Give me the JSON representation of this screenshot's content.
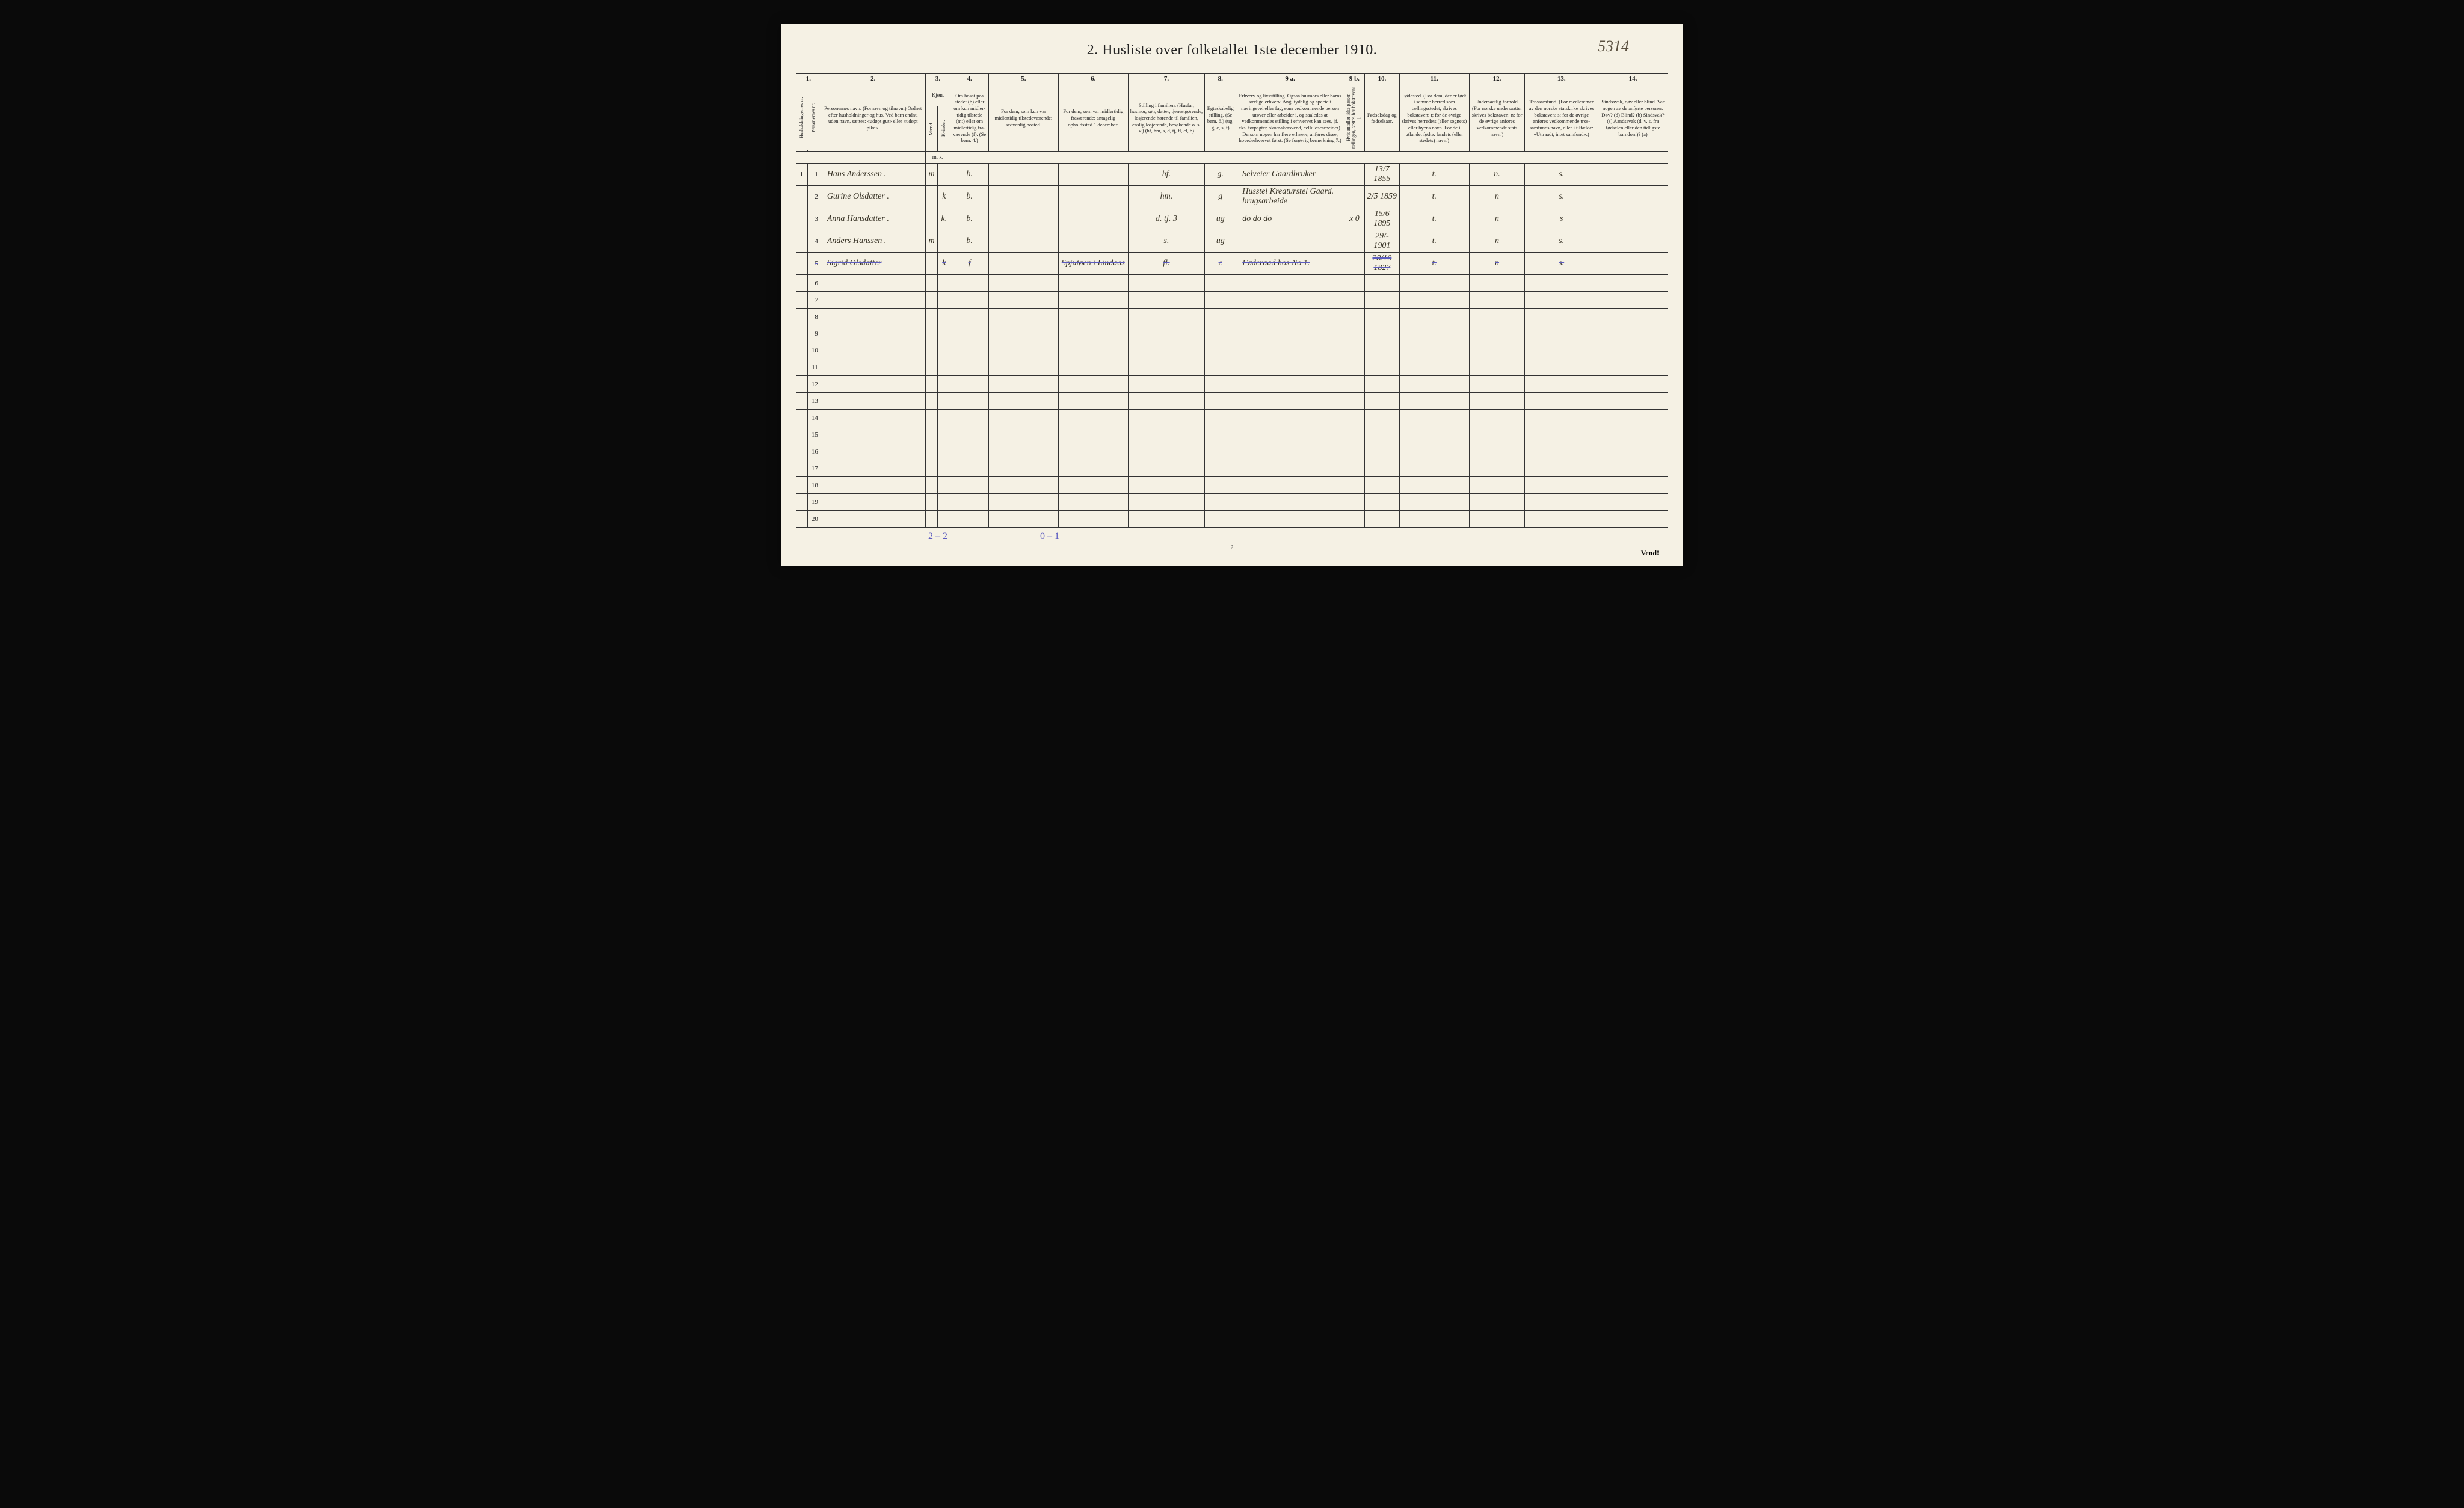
{
  "title": "2.  Husliste over folketallet 1ste december 1910.",
  "topRightNote": "5314",
  "colNums": [
    "1.",
    "",
    "2.",
    "3.",
    "4.",
    "5.",
    "6.",
    "7.",
    "8.",
    "9 a.",
    "9 b.",
    "10.",
    "11.",
    "12.",
    "13.",
    "14."
  ],
  "headers": {
    "husholdning": "Husholdningernes nr.",
    "personnr": "Personernes nr.",
    "navn": "Personernes navn.\n(Fornavn og tilnavn.)\nOrdnet efter husholdninger og hus.\nVed barn endnu uden navn, sættes: «udøpt gut» eller «udøpt pike».",
    "kjon": "Kjøn.",
    "mand": "Mænd.",
    "kvinder": "Kvinder.",
    "bosat": "Om bosat paa stedet (b) eller om kun midler­tidig tilstede (mt) eller om midler­tidig fra­værende (f).\n(Se bem. 4.)",
    "tilstede": "For dem, som kun var midlertidig tilstede­værende:\nsedvanlig bosted.",
    "fravar": "For dem, som var midlertidig fraværende:\nantagelig opholdssted 1 december.",
    "stilling": "Stilling i familien.\n(Husfar, husmor, søn, datter, tjenestgørende, lo­sjerende hørende til familien, enslig losjerende, besøkende o. s. v.)\n(hf, hm, s, d, tj, fl, el, b)",
    "egte": "Egteska­belig stilling.\n(Se bem. 6.)\n(ug, g, e, s, f)",
    "erhverv": "Erhverv og livsstilling.\nOgsaa husmors eller barns særlige erhverv.\nAngi tydelig og specielt næringsvei eller fag, som vedkommende person utøver eller arbeider i, og saaledes at vedkommendes stilling i erhvervet kan sees, (f. eks. forpagter, skomakersvend, cellulose­arbeider). Dersom nogen har flere erhverv, anføres disse, hovederhvervet først.\n(Se forøvrig bemerkning 7.)",
    "hvis": "Hvis antallet ikke passer tællingen, sættes her bokstaven: i.",
    "fodselsdag": "Fødsels­dag og fødsels­aar.",
    "fodested": "Fødested.\n(For dem, der er født i samme herred som tællingsstedet, skrives bokstaven: t; for de øvrige skrives herredets (eller sognets) eller byens navn. For de i utlandet fødte: landets (eller stedets) navn.)",
    "undersaat": "Undersaatlig forhold.\n(For norske under­saatter skrives bokstaven: n; for de øvrige anføres vedkom­mende stats navn.)",
    "tros": "Trossamfund.\n(For medlemmer av den norske statskirke skrives bokstaven: s; for de øvrige anføres vedkommende tros­samfunds navn, eller i til­fælde: «Uttraadt, intet samfund».)",
    "sind": "Sindssvak, døv eller blind.\nVar nogen av de anførte personer:\nDøv? (d)\nBlind? (b)\nSindsvak? (s)\nAandssvak (d. v. s. fra fødselen eller den tid­ligste barndom)? (a)",
    "mk": "m.  k."
  },
  "rows": [
    {
      "hnr": "1.",
      "pnr": "1",
      "name": "Hans Anderssen .",
      "sex": "m",
      "res": "b.",
      "til": "",
      "fra": "",
      "fam": "hf.",
      "egte": "g.",
      "erhv": "Selveier Gaardbruker",
      "hvis": "",
      "dob": "13/7 1855",
      "fod": "t.",
      "und": "n.",
      "tro": "s.",
      "sind": ""
    },
    {
      "hnr": "",
      "pnr": "2",
      "name": "Gurine Olsdatter .",
      "sex": "k",
      "res": "b.",
      "til": "",
      "fra": "",
      "fam": "hm.",
      "egte": "g",
      "erhv": "Husstel Kreaturstel Gaard. brugsarbeide",
      "hvis": "",
      "dob": "2/5 1859",
      "fod": "t.",
      "und": "n",
      "tro": "s.",
      "sind": ""
    },
    {
      "hnr": "",
      "pnr": "3",
      "name": "Anna Hansdatter .",
      "sex": "k.",
      "res": "b.",
      "til": "",
      "fra": "",
      "fam": "d.  tj.   3",
      "egte": "ug",
      "erhv": "do        do       do",
      "hvis": "x 0",
      "dob": "15/6 1895",
      "fod": "t.",
      "und": "n",
      "tro": "s",
      "sind": ""
    },
    {
      "hnr": "",
      "pnr": "4",
      "name": "Anders Hanssen .",
      "sex": "m",
      "res": "b.",
      "til": "",
      "fra": "",
      "fam": "s.",
      "egte": "ug",
      "erhv": "",
      "hvis": "",
      "dob": "29/- 1901",
      "fod": "t.",
      "und": "n",
      "tro": "s.",
      "sind": ""
    },
    {
      "hnr": "",
      "pnr": "5",
      "name": "Sigrid Olsdatter",
      "sex": "k",
      "res": "f",
      "til": "",
      "fra": "Spjutøen\ni Lindaas",
      "fam": "fl.",
      "egte": "e",
      "erhv": "Føderaad hos No 1.",
      "hvis": "",
      "dob": "28/10 1827",
      "fod": "t.",
      "und": "n",
      "tro": "s.",
      "sind": "",
      "struck": true
    }
  ],
  "emptyRowStart": 6,
  "emptyRowEnd": 20,
  "tallies": {
    "left": "2 – 2",
    "mid": "0 – 1"
  },
  "pageNum": "2",
  "vend": "Vend!"
}
